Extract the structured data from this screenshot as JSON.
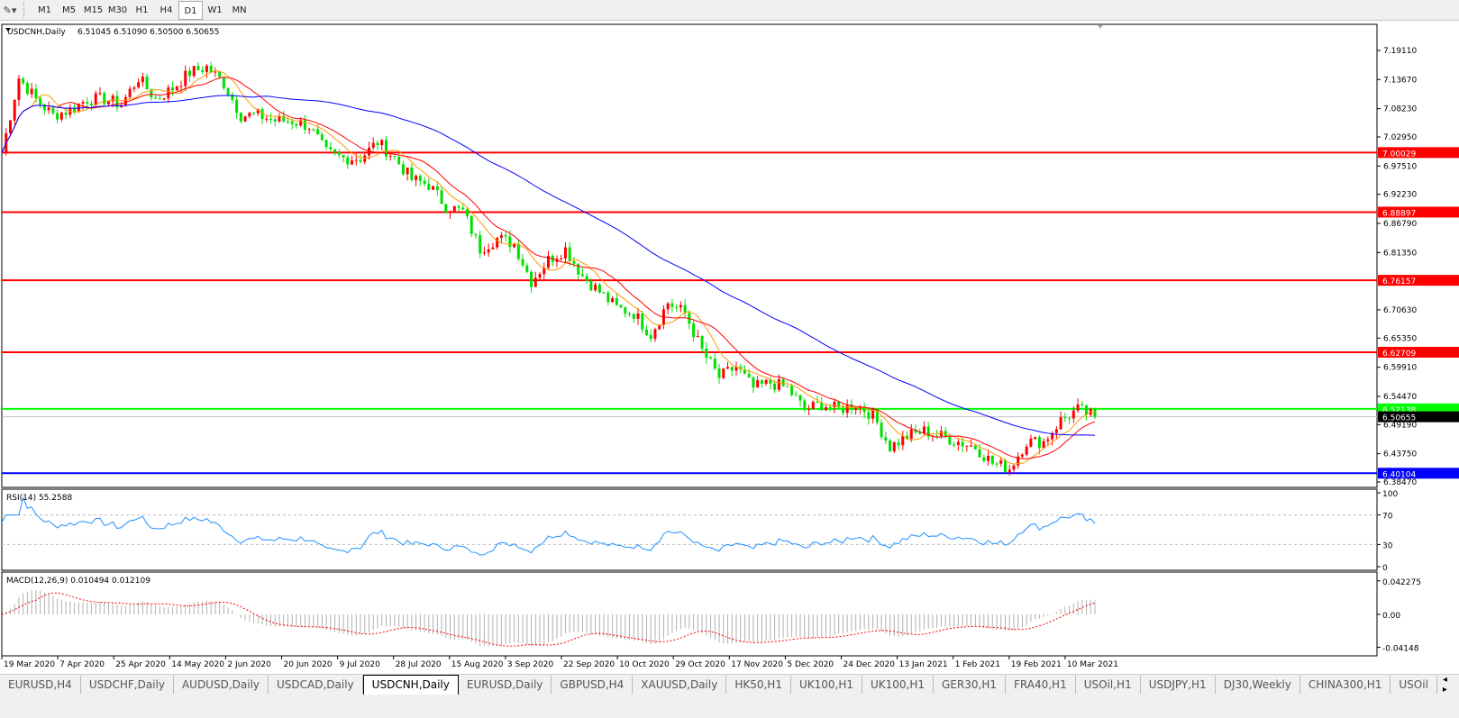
{
  "toolbar": {
    "timeframes": [
      "M1",
      "M5",
      "M15",
      "M30",
      "H1",
      "H4",
      "D1",
      "W1",
      "MN"
    ],
    "selected": "D1"
  },
  "chart_header": {
    "symbol": "USDCNH,Daily",
    "ohlc": "6.51045 6.51090 6.50500 6.50655"
  },
  "rsi_label": "RSI(14) 55.2588",
  "macd_label": "MACD(12,26,9) 0.010494 0.012109",
  "tabs": [
    "EURUSD,H4",
    "USDCHF,Daily",
    "AUDUSD,Daily",
    "USDCAD,Daily",
    "USDCNH,Daily",
    "EURUSD,Daily",
    "GBPUSD,H4",
    "XAUUSD,Daily",
    "HK50,H1",
    "UK100,H1",
    "UK100,H1",
    "GER30,H1",
    "FRA40,H1",
    "USOil,H1",
    "USDJPY,H1",
    "DJ30,Weekly",
    "CHINA300,H1",
    "USOil"
  ],
  "active_tab": "USDCNH,Daily",
  "colors": {
    "bull": "#ff0000",
    "bear": "#00e000",
    "ma_fast": "#ff0000",
    "ma_mid": "#ff9900",
    "ma_slow": "#0000ff",
    "rsi": "#1e90ff",
    "macd_signal": "#ff0000",
    "macd_hist": "#b0b0b0"
  },
  "chart_data": [
    {
      "type": "candlestick",
      "title": "USDCNH,Daily",
      "price_ticks": [
        "7.19110",
        "7.13670",
        "7.08230",
        "7.02950",
        "6.97510",
        "6.92230",
        "6.86790",
        "6.81350",
        "6.70630",
        "6.65350",
        "6.59910",
        "6.54470",
        "6.49190",
        "6.43750",
        "6.38470"
      ],
      "ylim": [
        6.3847,
        7.2311
      ],
      "date_ticks": [
        "19 Mar 2020",
        "7 Apr 2020",
        "25 Apr 2020",
        "14 May 2020",
        "2 Jun 2020",
        "20 Jun 2020",
        "9 Jul 2020",
        "28 Jul 2020",
        "15 Aug 2020",
        "3 Sep 2020",
        "22 Sep 2020",
        "10 Oct 2020",
        "29 Oct 2020",
        "17 Nov 2020",
        "5 Dec 2020",
        "24 Dec 2020",
        "13 Jan 2021",
        "1 Feb 2021",
        "19 Feb 2021",
        "10 Mar 2021"
      ],
      "closes": [
        7.0,
        7.14,
        7.1,
        7.07,
        7.08,
        7.1,
        7.1,
        7.09,
        7.14,
        7.1,
        7.12,
        7.15,
        7.16,
        7.13,
        7.07,
        7.07,
        7.06,
        7.06,
        7.05,
        7.0,
        6.99,
        6.99,
        7.02,
        6.99,
        6.95,
        6.94,
        6.9,
        6.89,
        6.82,
        6.84,
        6.83,
        6.76,
        6.8,
        6.82,
        6.77,
        6.74,
        6.71,
        6.7,
        6.66,
        6.72,
        6.7,
        6.63,
        6.58,
        6.6,
        6.56,
        6.57,
        6.56,
        6.52,
        6.53,
        6.52,
        6.53,
        6.51,
        6.45,
        6.47,
        6.48,
        6.47,
        6.46,
        6.45,
        6.42,
        6.41,
        6.46,
        6.46,
        6.5,
        6.52,
        6.50655
      ],
      "levels": [
        {
          "value": "7.00029",
          "color": "#ff0000"
        },
        {
          "value": "6.88897",
          "color": "#ff0000"
        },
        {
          "value": "6.76157",
          "color": "#ff0000"
        },
        {
          "value": "6.62709",
          "color": "#ff0000"
        },
        {
          "value": "6.52138",
          "color": "#00ff00"
        },
        {
          "value": "6.40104",
          "color": "#0000ff"
        }
      ],
      "current_price": "6.50655"
    },
    {
      "type": "line",
      "title": "RSI(14) 55.2588",
      "ylim": [
        0,
        100
      ],
      "ticks": [
        "100",
        "70",
        "30",
        "0"
      ],
      "levels": [
        70,
        30
      ]
    },
    {
      "type": "bar",
      "title": "MACD(12,26,9) 0.010494 0.012109",
      "ticks": [
        "0.042275",
        "0.00",
        "-0.04148"
      ],
      "ylim": [
        -0.04148,
        0.042275
      ]
    }
  ]
}
